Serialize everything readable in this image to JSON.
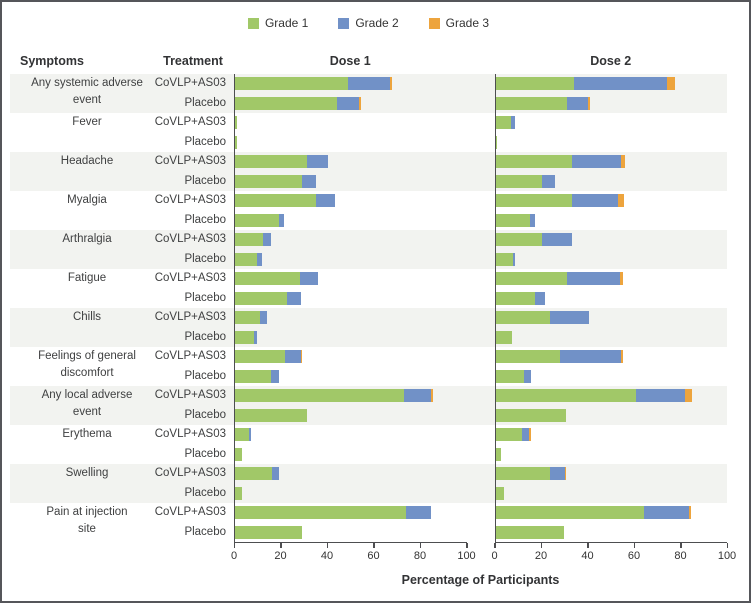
{
  "legend": {
    "items": [
      {
        "label": "Grade 1",
        "color": "#a1c868"
      },
      {
        "label": "Grade 2",
        "color": "#7191c7"
      },
      {
        "label": "Grade 3",
        "color": "#eda43d"
      }
    ]
  },
  "headers": {
    "symptoms": "Symptoms",
    "treatment": "Treatment",
    "dose1": "Dose 1",
    "dose2": "Dose 2"
  },
  "axis": {
    "min": 0,
    "max": 100,
    "ticks": [
      0,
      20,
      40,
      60,
      80,
      100
    ],
    "xlabel": "Percentage of Participants"
  },
  "colors": {
    "grade1": "#a1c868",
    "grade2": "#7191c7",
    "grade3": "#eda43d",
    "stripe": "#f2f3f0",
    "axis": "#4d4e50"
  },
  "chart_data": {
    "type": "bar",
    "orientation": "horizontal",
    "stacked": true,
    "series_names": [
      "Grade 1",
      "Grade 2",
      "Grade 3"
    ],
    "panels": [
      "Dose 1",
      "Dose 2"
    ],
    "unit": "percent of participants",
    "xlim": [
      0,
      100
    ],
    "groups": [
      {
        "symptom": "Any systemic adverse\nevent",
        "striped": true,
        "rows": [
          {
            "treatment": "CoVLP+AS03",
            "dose1": [
              49,
              18,
              1
            ],
            "dose2": [
              34,
              40,
              3.5
            ]
          },
          {
            "treatment": "Placebo",
            "dose1": [
              44,
              9.5,
              1
            ],
            "dose2": [
              31,
              9,
              1
            ]
          }
        ]
      },
      {
        "symptom": "Fever",
        "striped": false,
        "rows": [
          {
            "treatment": "CoVLP+AS03",
            "dose1": [
              1,
              0,
              0
            ],
            "dose2": [
              6.5,
              2,
              0
            ]
          },
          {
            "treatment": "Placebo",
            "dose1": [
              1,
              0,
              0
            ],
            "dose2": [
              0.5,
              0,
              0
            ]
          }
        ]
      },
      {
        "symptom": "Headache",
        "striped": true,
        "rows": [
          {
            "treatment": "CoVLP+AS03",
            "dose1": [
              31,
              9,
              0
            ],
            "dose2": [
              33,
              21,
              2
            ]
          },
          {
            "treatment": "Placebo",
            "dose1": [
              29,
              6,
              0
            ],
            "dose2": [
              20,
              5.5,
              0
            ]
          }
        ]
      },
      {
        "symptom": "Myalgia",
        "striped": false,
        "rows": [
          {
            "treatment": "CoVLP+AS03",
            "dose1": [
              35,
              8,
              0
            ],
            "dose2": [
              33,
              20,
              2.5
            ]
          },
          {
            "treatment": "Placebo",
            "dose1": [
              19,
              2,
              0
            ],
            "dose2": [
              15,
              2,
              0
            ]
          }
        ]
      },
      {
        "symptom": "Arthralgia",
        "striped": true,
        "rows": [
          {
            "treatment": "CoVLP+AS03",
            "dose1": [
              12,
              3.5,
              0
            ],
            "dose2": [
              20,
              13,
              0
            ]
          },
          {
            "treatment": "Placebo",
            "dose1": [
              9.5,
              2,
              0
            ],
            "dose2": [
              7.5,
              1,
              0
            ]
          }
        ]
      },
      {
        "symptom": "Fatigue",
        "striped": false,
        "rows": [
          {
            "treatment": "CoVLP+AS03",
            "dose1": [
              28,
              8,
              0
            ],
            "dose2": [
              31,
              23,
              1
            ]
          },
          {
            "treatment": "Placebo",
            "dose1": [
              22.5,
              6,
              0
            ],
            "dose2": [
              17,
              4.5,
              0
            ]
          }
        ]
      },
      {
        "symptom": "Chills",
        "striped": true,
        "rows": [
          {
            "treatment": "CoVLP+AS03",
            "dose1": [
              11,
              3,
              0
            ],
            "dose2": [
              23.5,
              17,
              0
            ]
          },
          {
            "treatment": "Placebo",
            "dose1": [
              8,
              1.5,
              0
            ],
            "dose2": [
              7,
              0,
              0
            ]
          }
        ]
      },
      {
        "symptom": "Feelings of general\ndiscomfort",
        "striped": false,
        "rows": [
          {
            "treatment": "CoVLP+AS03",
            "dose1": [
              21.5,
              7,
              0.5
            ],
            "dose2": [
              28,
              26,
              1
            ]
          },
          {
            "treatment": "Placebo",
            "dose1": [
              15.5,
              3.5,
              0
            ],
            "dose2": [
              12.5,
              3,
              0
            ]
          }
        ]
      },
      {
        "symptom": "Any local adverse\nevent",
        "striped": true,
        "rows": [
          {
            "treatment": "CoVLP+AS03",
            "dose1": [
              73,
              11.5,
              1
            ],
            "dose2": [
              60.5,
              21.5,
              3
            ]
          },
          {
            "treatment": "Placebo",
            "dose1": [
              31,
              0,
              0
            ],
            "dose2": [
              30.5,
              0,
              0
            ]
          }
        ]
      },
      {
        "symptom": "Erythema",
        "striped": false,
        "rows": [
          {
            "treatment": "CoVLP+AS03",
            "dose1": [
              6,
              1,
              0
            ],
            "dose2": [
              11.5,
              3,
              1
            ]
          },
          {
            "treatment": "Placebo",
            "dose1": [
              3,
              0,
              0
            ],
            "dose2": [
              2.5,
              0,
              0
            ]
          }
        ]
      },
      {
        "symptom": "Swelling",
        "striped": true,
        "rows": [
          {
            "treatment": "CoVLP+AS03",
            "dose1": [
              16,
              3,
              0
            ],
            "dose2": [
              23.5,
              6.5,
              0.5
            ]
          },
          {
            "treatment": "Placebo",
            "dose1": [
              3,
              0,
              0
            ],
            "dose2": [
              3.5,
              0,
              0
            ]
          }
        ]
      },
      {
        "symptom": "Pain at injection\nsite",
        "striped": false,
        "rows": [
          {
            "treatment": "CoVLP+AS03",
            "dose1": [
              74,
              10.5,
              0
            ],
            "dose2": [
              64,
              19.5,
              1
            ]
          },
          {
            "treatment": "Placebo",
            "dose1": [
              29,
              0,
              0
            ],
            "dose2": [
              29.5,
              0,
              0
            ]
          }
        ]
      }
    ]
  }
}
